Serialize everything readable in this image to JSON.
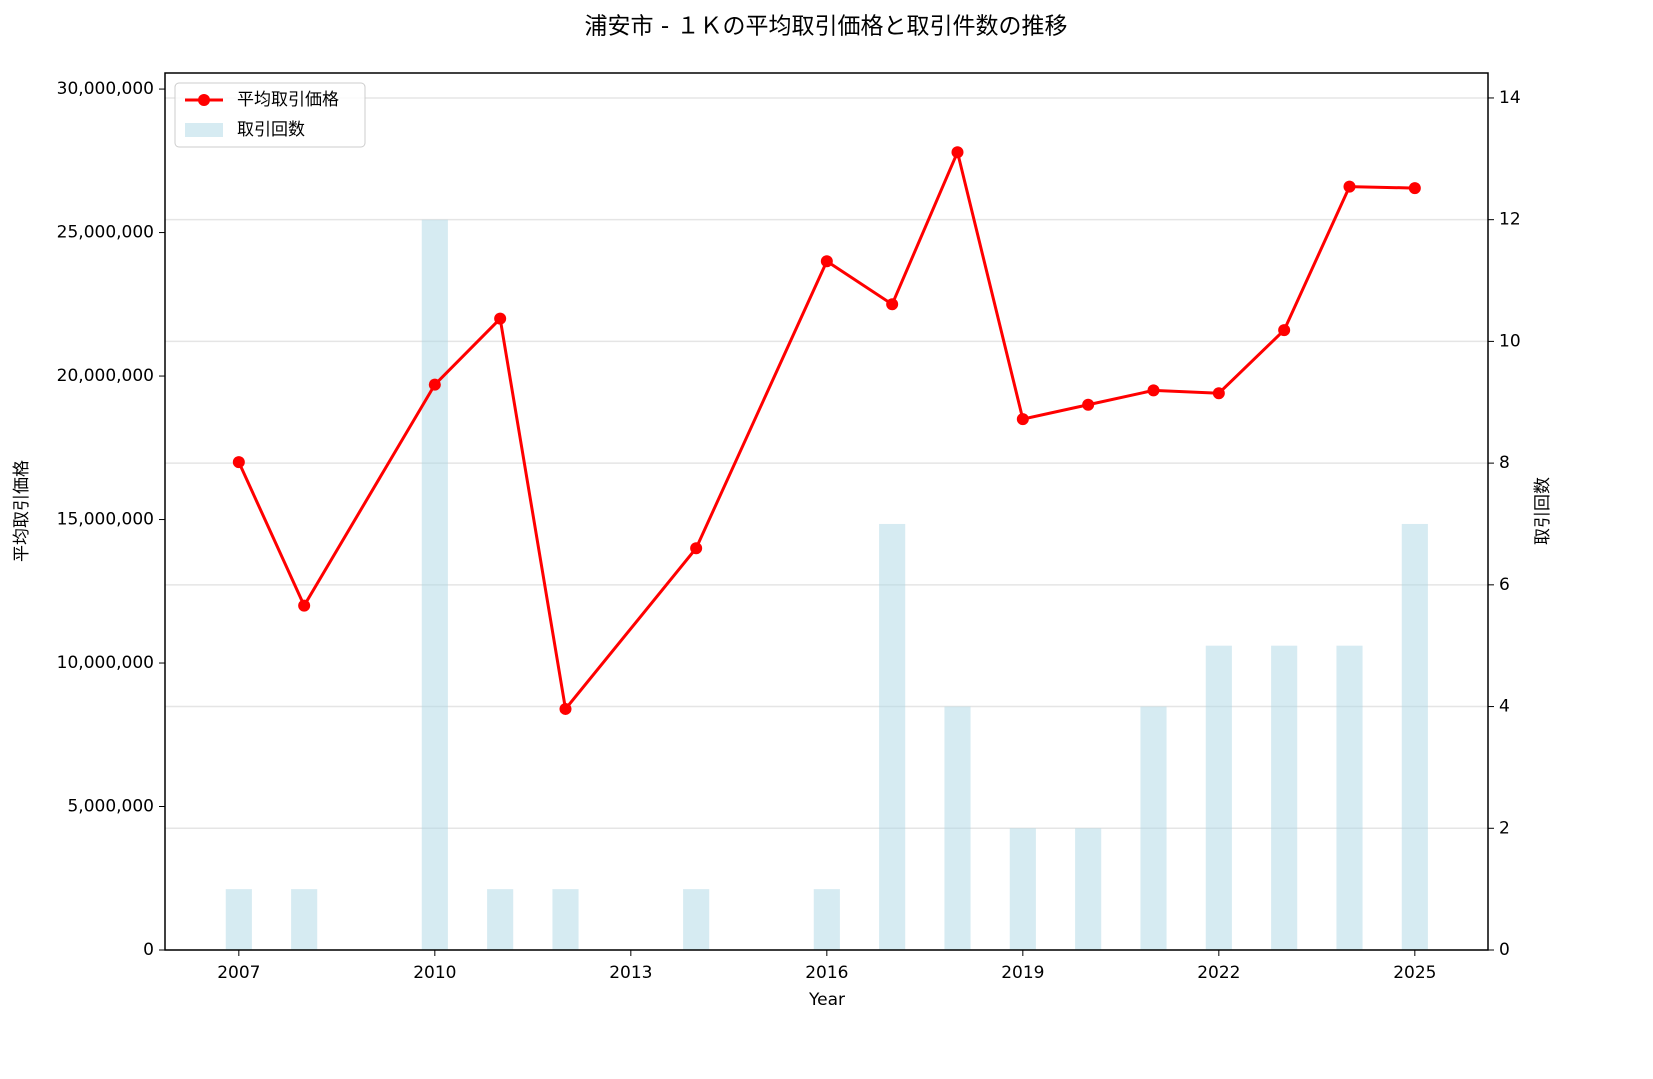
{
  "chart_data": {
    "type": "combo",
    "title": "浦安市 - １Ｋの平均取引価格と取引件数の推移",
    "x_label": "Year",
    "y_label": "平均取引価格",
    "y2_label": "取引回数",
    "y_color": "#8b0000",
    "y2_color": "#00008b",
    "x": [
      2007,
      2008,
      2010,
      2011,
      2012,
      2014,
      2016,
      2017,
      2018,
      2019,
      2020,
      2021,
      2022,
      2023,
      2024,
      2025
    ],
    "series": [
      {
        "name": "平均取引価格",
        "type": "line",
        "color": "#ff0000",
        "axis": "y",
        "values": [
          17000000,
          12000000,
          19700000,
          22000000,
          8400000,
          14000000,
          24000000,
          22500000,
          27800000,
          18500000,
          19000000,
          19500000,
          19400000,
          21600000,
          26600000,
          26550000
        ]
      },
      {
        "name": "取引回数",
        "type": "bar",
        "color": "#add8e6",
        "axis": "y2",
        "values": [
          1,
          1,
          12,
          1,
          1,
          1,
          1,
          7,
          4,
          2,
          2,
          4,
          5,
          5,
          5,
          7
        ]
      }
    ],
    "xlim": [
      2005.87,
      2026.12
    ],
    "xticks": [
      2007,
      2010,
      2013,
      2016,
      2019,
      2022,
      2025
    ],
    "ylim": [
      0,
      30560000
    ],
    "yticks": [
      0,
      {
        "value": 5000000,
        "label": "5,000,000"
      },
      {
        "value": 10000000,
        "label": "10,000,000"
      },
      {
        "value": 15000000,
        "label": "15,000,000"
      },
      {
        "value": 20000000,
        "label": "20,000,000"
      },
      {
        "value": 25000000,
        "label": "25,000,000"
      },
      {
        "value": 30000000,
        "label": "30,000,000"
      }
    ],
    "y2lim": [
      0,
      14.41
    ],
    "y2ticks": [
      0,
      2,
      4,
      6,
      8,
      10,
      12,
      14
    ],
    "grid": true,
    "legend": "upper left"
  }
}
